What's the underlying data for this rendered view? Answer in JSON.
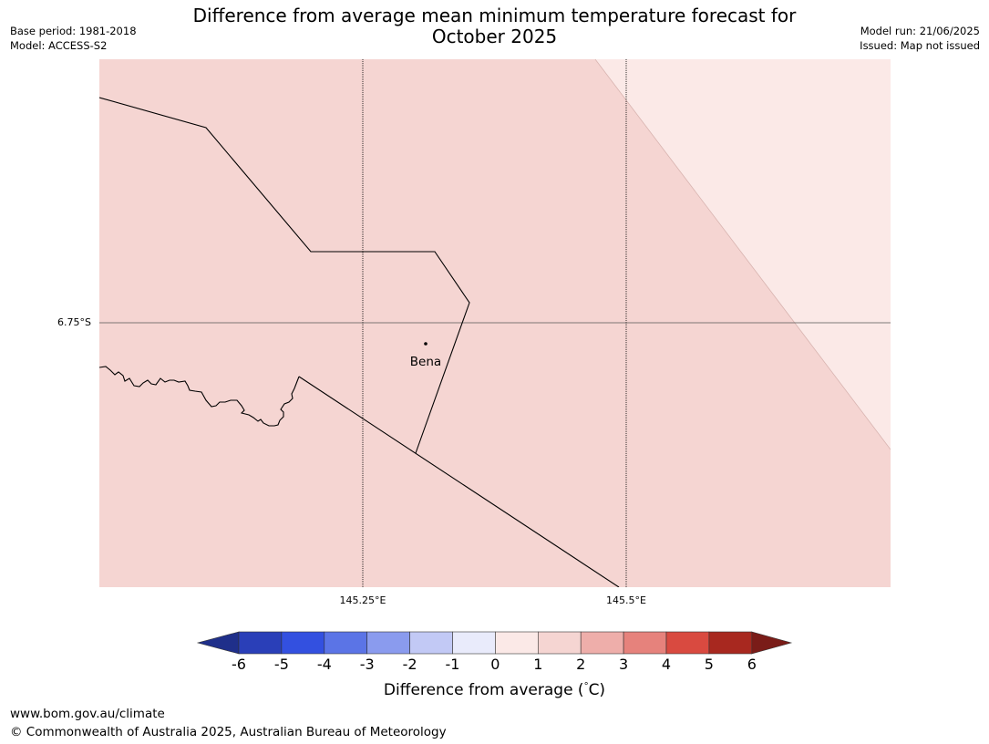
{
  "header": {
    "title_line1": "Difference from average mean minimum temperature forecast for",
    "title_line2": "October 2025",
    "base_period": "Base period: 1981-2018",
    "model": "Model: ACCESS-S2",
    "model_run": "Model run: 21/06/2025",
    "issued": "Issued: Map not issued"
  },
  "map": {
    "lat_label": "6.75°S",
    "lon_labels": [
      "145.25°E",
      "145.5°E"
    ],
    "place": "Bena",
    "dominant_category": "1 to 2",
    "corner_category": "0 to 1"
  },
  "colorbar": {
    "ticks": [
      "-6",
      "-5",
      "-4",
      "-3",
      "-2",
      "-1",
      "0",
      "1",
      "2",
      "3",
      "4",
      "5",
      "6"
    ],
    "colors": [
      "#1f2f8a",
      "#2a3fb8",
      "#3350e0",
      "#5b74e6",
      "#8a9bee",
      "#c2c9f5",
      "#e9ebfb",
      "#fbe9e7",
      "#f5d5d2",
      "#eeaeaa",
      "#e6827c",
      "#d94a40",
      "#a8281f",
      "#7a1c18"
    ],
    "label": "Difference from average (",
    "label_unit": "C)",
    "label_degree": "°"
  },
  "footer": {
    "url": "www.bom.gov.au/climate",
    "copyright": "© Commonwealth of Australia 2025, Australian Bureau of Meteorology"
  }
}
